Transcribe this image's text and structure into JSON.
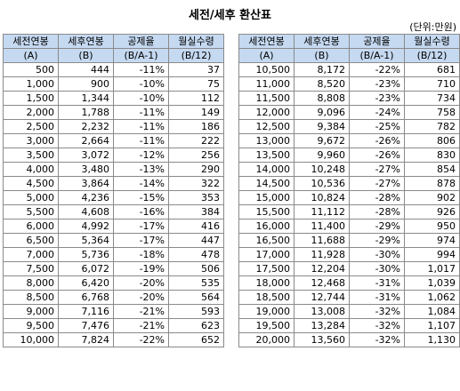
{
  "title": "세전/세후 환산표",
  "unit": "(단위:만원)",
  "headers": [
    {
      "top": "세전연봉",
      "bottom": "(A)"
    },
    {
      "top": "세후연봉",
      "bottom": "(B)"
    },
    {
      "top": "공제율",
      "bottom": "(B/A-1)"
    },
    {
      "top": "월실수령",
      "bottom": "(B/12)"
    }
  ],
  "left_rows": [
    [
      "500",
      "444",
      "-11%",
      "37"
    ],
    [
      "1,000",
      "900",
      "-10%",
      "75"
    ],
    [
      "1,500",
      "1,344",
      "-10%",
      "112"
    ],
    [
      "2,000",
      "1,788",
      "-11%",
      "149"
    ],
    [
      "2,500",
      "2,232",
      "-11%",
      "186"
    ],
    [
      "3,000",
      "2,664",
      "-11%",
      "222"
    ],
    [
      "3,500",
      "3,072",
      "-12%",
      "256"
    ],
    [
      "4,000",
      "3,480",
      "-13%",
      "290"
    ],
    [
      "4,500",
      "3,864",
      "-14%",
      "322"
    ],
    [
      "5,000",
      "4,236",
      "-15%",
      "353"
    ],
    [
      "5,500",
      "4,608",
      "-16%",
      "384"
    ],
    [
      "6,000",
      "4,992",
      "-17%",
      "416"
    ],
    [
      "6,500",
      "5,364",
      "-17%",
      "447"
    ],
    [
      "7,000",
      "5,736",
      "-18%",
      "478"
    ],
    [
      "7,500",
      "6,072",
      "-19%",
      "506"
    ],
    [
      "8,000",
      "6,420",
      "-20%",
      "535"
    ],
    [
      "8,500",
      "6,768",
      "-20%",
      "564"
    ],
    [
      "9,000",
      "7,116",
      "-21%",
      "593"
    ],
    [
      "9,500",
      "7,476",
      "-21%",
      "623"
    ],
    [
      "10,000",
      "7,824",
      "-22%",
      "652"
    ]
  ],
  "right_rows": [
    [
      "10,500",
      "8,172",
      "-22%",
      "681"
    ],
    [
      "11,000",
      "8,520",
      "-23%",
      "710"
    ],
    [
      "11,500",
      "8,808",
      "-23%",
      "734"
    ],
    [
      "12,000",
      "9,096",
      "-24%",
      "758"
    ],
    [
      "12,500",
      "9,384",
      "-25%",
      "782"
    ],
    [
      "13,000",
      "9,672",
      "-26%",
      "806"
    ],
    [
      "13,500",
      "9,960",
      "-26%",
      "830"
    ],
    [
      "14,000",
      "10,248",
      "-27%",
      "854"
    ],
    [
      "14,500",
      "10,536",
      "-27%",
      "878"
    ],
    [
      "15,000",
      "10,824",
      "-28%",
      "902"
    ],
    [
      "15,500",
      "11,112",
      "-28%",
      "926"
    ],
    [
      "16,000",
      "11,400",
      "-29%",
      "950"
    ],
    [
      "16,500",
      "11,688",
      "-29%",
      "974"
    ],
    [
      "17,000",
      "11,928",
      "-30%",
      "994"
    ],
    [
      "17,500",
      "12,204",
      "-30%",
      "1,017"
    ],
    [
      "18,000",
      "12,468",
      "-31%",
      "1,039"
    ],
    [
      "18,500",
      "12,744",
      "-31%",
      "1,062"
    ],
    [
      "19,000",
      "13,008",
      "-32%",
      "1,084"
    ],
    [
      "19,500",
      "13,284",
      "-32%",
      "1,107"
    ],
    [
      "20,000",
      "13,560",
      "-32%",
      "1,130"
    ]
  ]
}
